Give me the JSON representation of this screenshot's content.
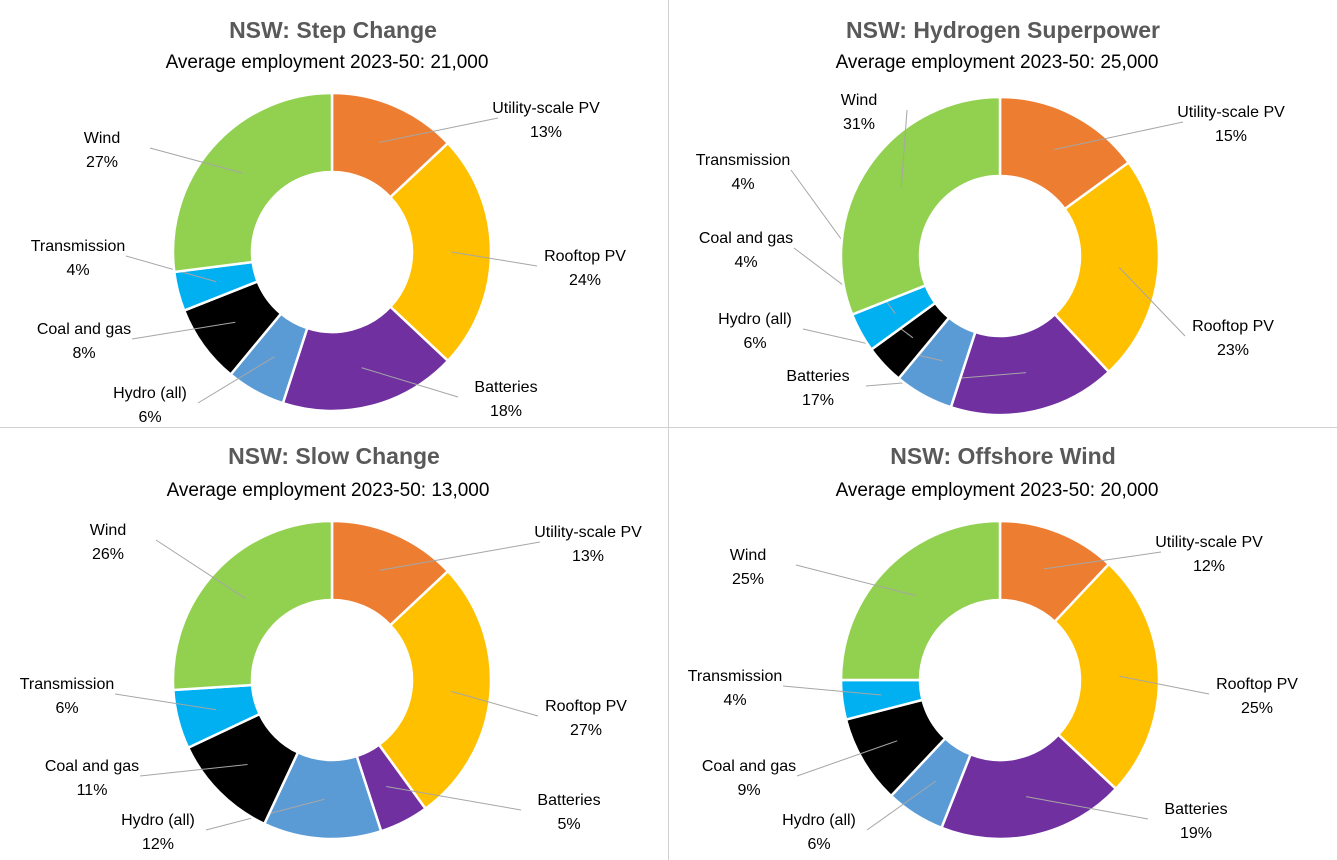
{
  "colors": {
    "Wind": "#92d050",
    "Utility-scale PV": "#ed7d31",
    "Rooftop PV": "#ffc000",
    "Batteries": "#7030a0",
    "Hydro (all)": "#5b9bd5",
    "Coal and gas": "#000000",
    "Transmission": "#00b0f0"
  },
  "chart_data": [
    {
      "type": "pie",
      "title": "NSW: Step Change",
      "subtitle": "Average employment 2023-50: 21,000",
      "slices": [
        {
          "label": "Utility-scale PV",
          "value": 13,
          "pct": "13%"
        },
        {
          "label": "Rooftop PV",
          "value": 24,
          "pct": "24%"
        },
        {
          "label": "Batteries",
          "value": 18,
          "pct": "18%"
        },
        {
          "label": "Hydro (all)",
          "value": 6,
          "pct": "6%"
        },
        {
          "label": "Coal and gas",
          "value": 8,
          "pct": "8%"
        },
        {
          "label": "Transmission",
          "value": 4,
          "pct": "4%"
        },
        {
          "label": "Wind",
          "value": 27,
          "pct": "27%"
        }
      ]
    },
    {
      "type": "pie",
      "title": "NSW: Hydrogen Superpower",
      "subtitle": "Average employment 2023-50: 25,000",
      "slices": [
        {
          "label": "Utility-scale PV",
          "value": 15,
          "pct": "15%"
        },
        {
          "label": "Rooftop PV",
          "value": 23,
          "pct": "23%"
        },
        {
          "label": "Batteries",
          "value": 17,
          "pct": "17%"
        },
        {
          "label": "Hydro (all)",
          "value": 6,
          "pct": "6%"
        },
        {
          "label": "Coal and gas",
          "value": 4,
          "pct": "4%"
        },
        {
          "label": "Transmission",
          "value": 4,
          "pct": "4%"
        },
        {
          "label": "Wind",
          "value": 31,
          "pct": "31%"
        }
      ]
    },
    {
      "type": "pie",
      "title": "NSW: Slow Change",
      "subtitle": "Average employment 2023-50: 13,000",
      "slices": [
        {
          "label": "Utility-scale PV",
          "value": 13,
          "pct": "13%"
        },
        {
          "label": "Rooftop PV",
          "value": 27,
          "pct": "27%"
        },
        {
          "label": "Batteries",
          "value": 5,
          "pct": "5%"
        },
        {
          "label": "Hydro (all)",
          "value": 12,
          "pct": "12%"
        },
        {
          "label": "Coal and gas",
          "value": 11,
          "pct": "11%"
        },
        {
          "label": "Transmission",
          "value": 6,
          "pct": "6%"
        },
        {
          "label": "Wind",
          "value": 26,
          "pct": "26%"
        }
      ]
    },
    {
      "type": "pie",
      "title": "NSW: Offshore Wind",
      "subtitle": "Average employment 2023-50: 20,000",
      "slices": [
        {
          "label": "Utility-scale PV",
          "value": 12,
          "pct": "12%"
        },
        {
          "label": "Rooftop PV",
          "value": 25,
          "pct": "25%"
        },
        {
          "label": "Batteries",
          "value": 19,
          "pct": "19%"
        },
        {
          "label": "Hydro (all)",
          "value": 6,
          "pct": "6%"
        },
        {
          "label": "Coal and gas",
          "value": 9,
          "pct": "9%"
        },
        {
          "label": "Transmission",
          "value": 4,
          "pct": "4%"
        },
        {
          "label": "Wind",
          "value": 25,
          "pct": "25%"
        }
      ]
    }
  ]
}
